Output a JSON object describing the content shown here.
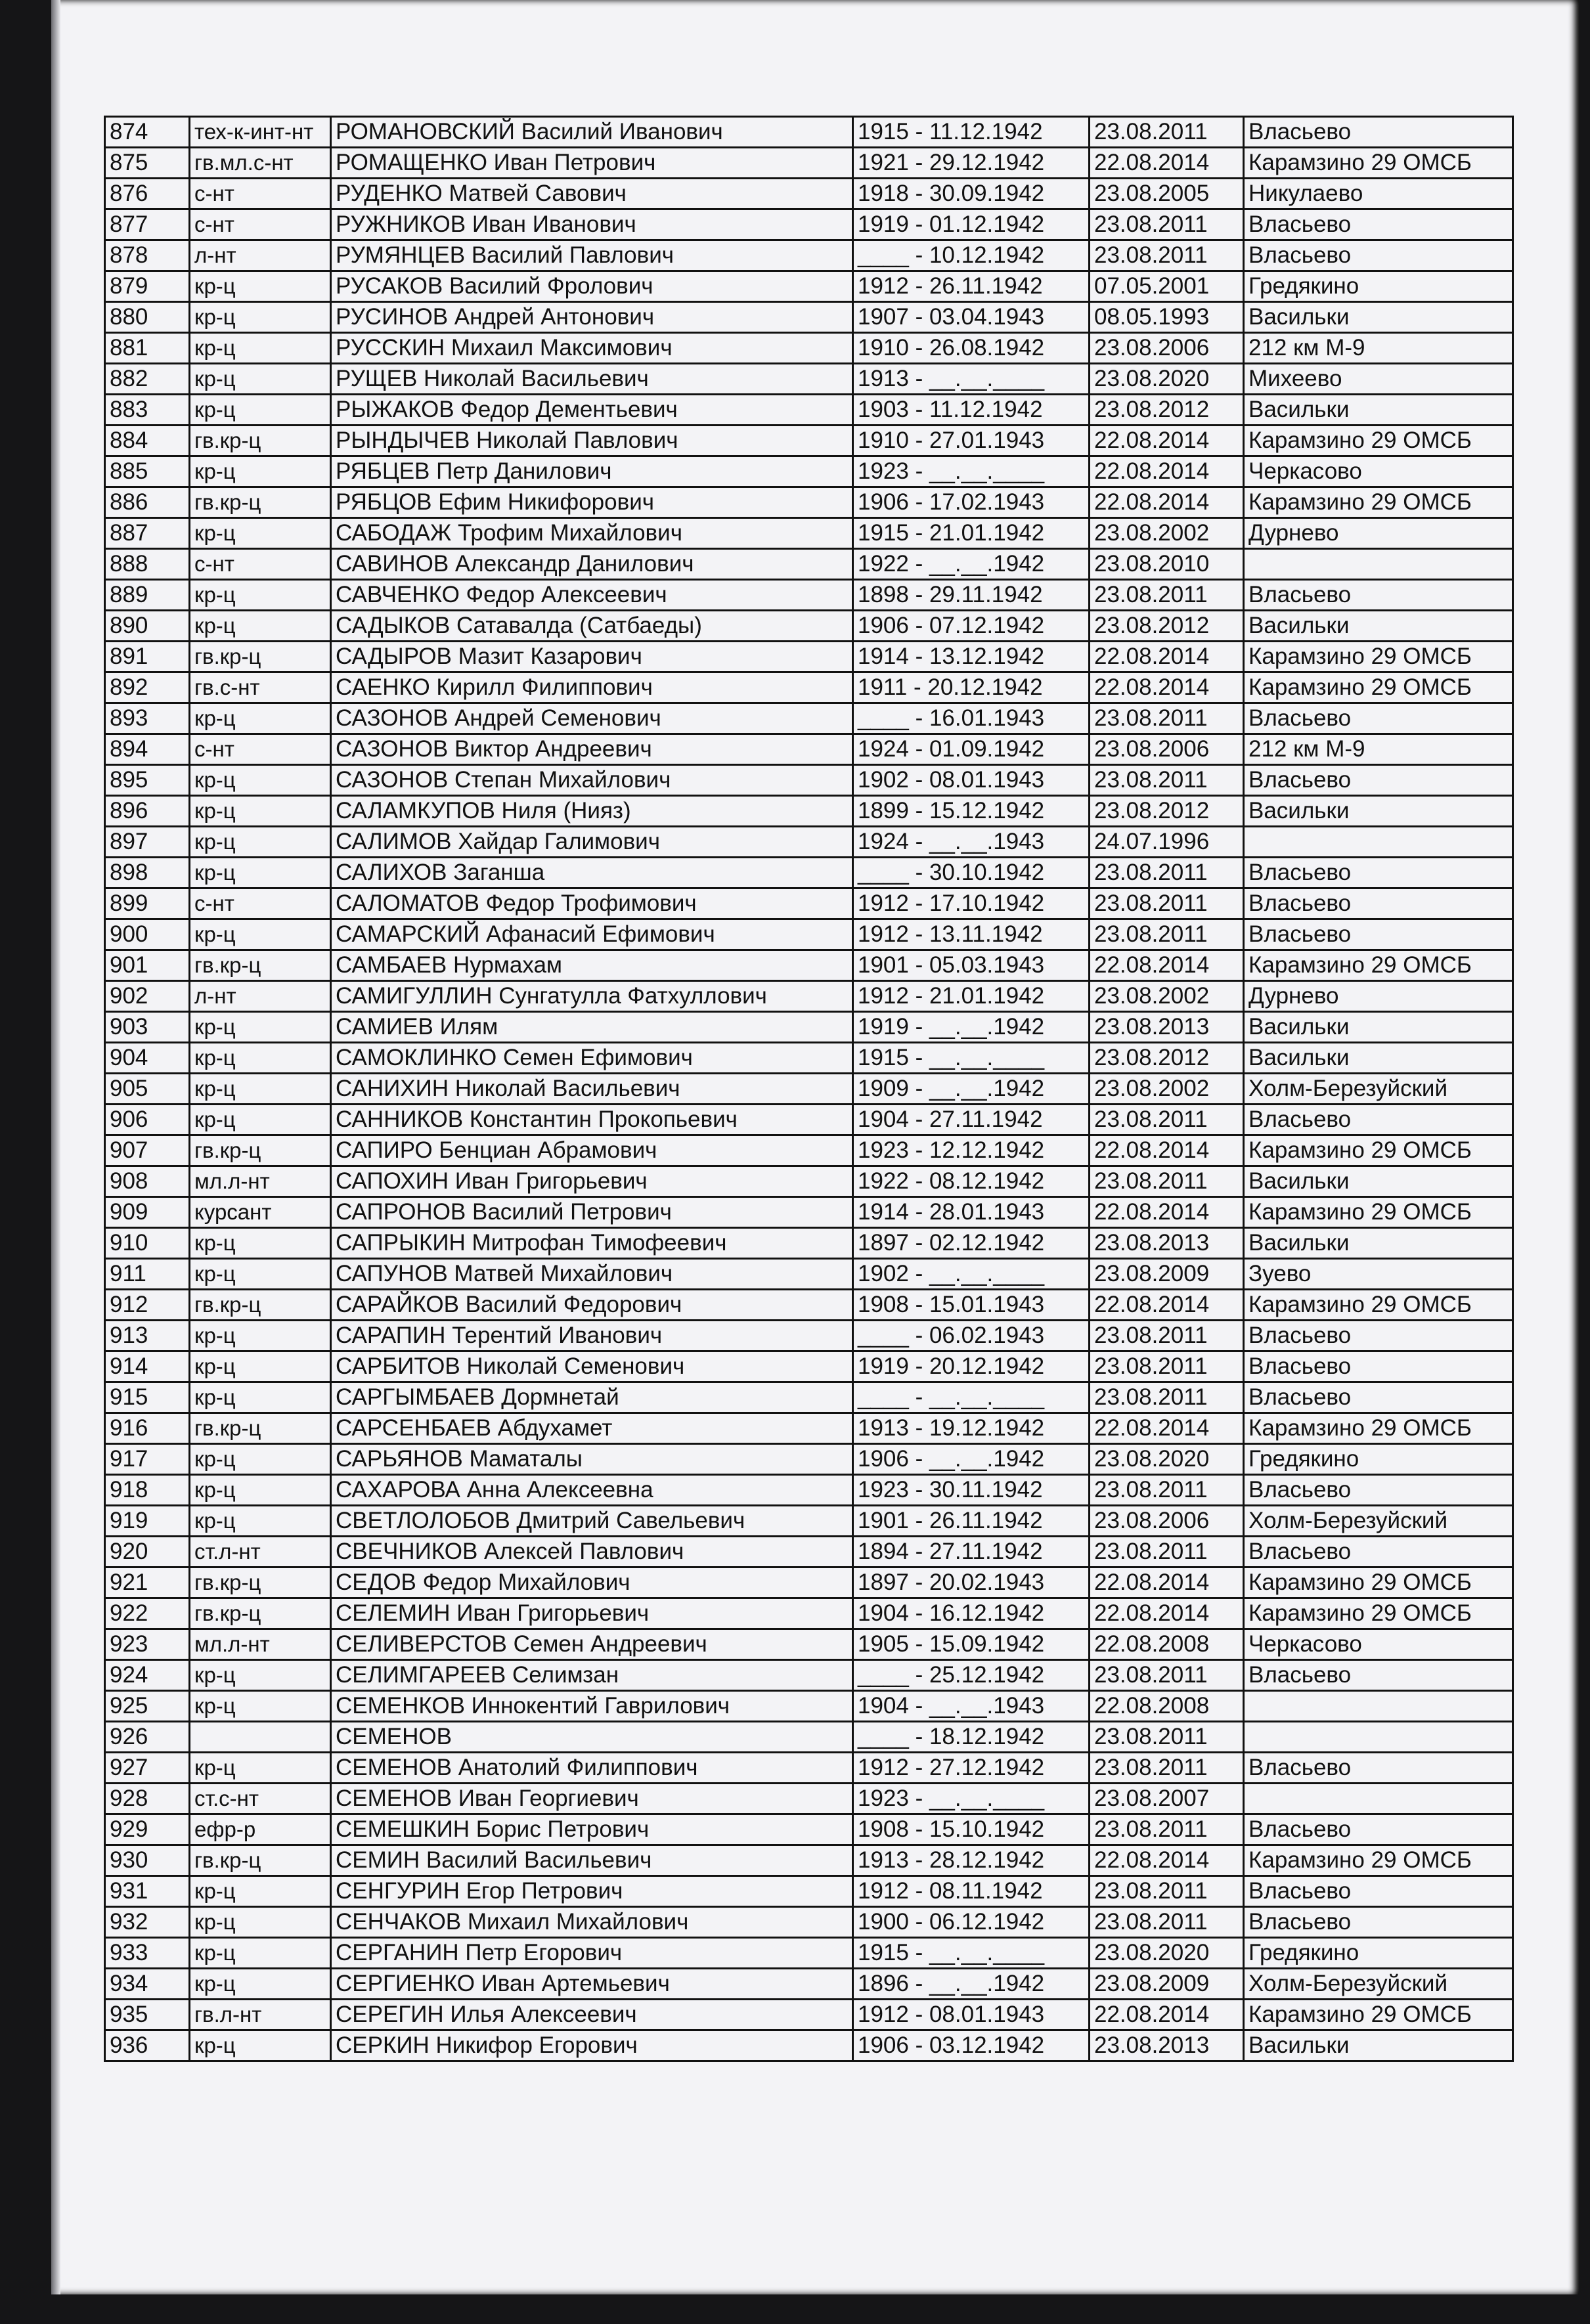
{
  "rows": [
    [
      "874",
      "тех-к-инт-нт",
      "РОМАНОВСКИЙ Василий Иванович",
      "1915 - 11.12.1942",
      "23.08.2011",
      "Власьево"
    ],
    [
      "875",
      "гв.мл.с-нт",
      "РОМАЩЕНКО Иван Петрович",
      "1921 - 29.12.1942",
      "22.08.2014",
      "Карамзино 29 ОМСБ"
    ],
    [
      "876",
      "с-нт",
      "РУДЕНКО  Матвей  Савович",
      "1918 - 30.09.1942",
      "23.08.2005",
      "Никулаево"
    ],
    [
      "877",
      "с-нт",
      "РУЖНИКОВ Иван Иванович",
      "1919 - 01.12.1942",
      "23.08.2011",
      "Власьево"
    ],
    [
      "878",
      "л-нт",
      "РУМЯНЦЕВ Василий Павлович",
      "____ - 10.12.1942",
      "23.08.2011",
      "Власьево"
    ],
    [
      "879",
      "кр-ц",
      "РУСАКОВ  Василий  Фролович",
      "1912 - 26.11.1942",
      "07.05.2001",
      "Гредякино"
    ],
    [
      "880",
      "кр-ц",
      "РУСИНОВ  Андрей  Антонович",
      "1907 - 03.04.1943",
      "08.05.1993",
      "Васильки"
    ],
    [
      "881",
      "кр-ц",
      "РУССКИН Михаил Максимович",
      "1910 - 26.08.1942",
      "23.08.2006",
      "212 км М-9"
    ],
    [
      "882",
      "кр-ц",
      "РУЩЕВ Николай Васильевич",
      "1913 - __.__.____",
      "23.08.2020",
      "Михеево"
    ],
    [
      "883",
      "кр-ц",
      "РЫЖАКОВ Федор Дементьевич",
      "1903 - 11.12.1942",
      "23.08.2012",
      "Васильки"
    ],
    [
      "884",
      "гв.кр-ц",
      "РЫНДЫЧЕВ Николай Павлович",
      "1910 - 27.01.1943",
      "22.08.2014",
      "Карамзино 29 ОМСБ"
    ],
    [
      "885",
      "кр-ц",
      "РЯБЦЕВ Петр Данилович",
      "1923 - __.__.____",
      "22.08.2014",
      "Черкасово"
    ],
    [
      "886",
      "гв.кр-ц",
      "РЯБЦОВ Ефим Никифорович",
      "1906 - 17.02.1943",
      "22.08.2014",
      "Карамзино 29 ОМСБ"
    ],
    [
      "887",
      "кр-ц",
      "САБОДАЖ Трофим Михайлович",
      "1915 - 21.01.1942",
      "23.08.2002",
      "Дурнево"
    ],
    [
      "888",
      "с-нт",
      "САВИНОВ Александр Данилович",
      "1922 - __.__.1942",
      "23.08.2010",
      ""
    ],
    [
      "889",
      "кр-ц",
      "САВЧЕНКО Федор Алексеевич",
      "1898 - 29.11.1942",
      "23.08.2011",
      "Власьево"
    ],
    [
      "890",
      "кр-ц",
      "САДЫКОВ Сатавалда (Сатбаеды)",
      "1906 - 07.12.1942",
      "23.08.2012",
      "Васильки"
    ],
    [
      "891",
      "гв.кр-ц",
      "САДЫРОВ Мазит Казарович",
      "1914 - 13.12.1942",
      "22.08.2014",
      "Карамзино 29 ОМСБ"
    ],
    [
      "892",
      "гв.с-нт",
      "САЕНКО Кирилл Филиппович",
      "1911 - 20.12.1942",
      "22.08.2014",
      "Карамзино 29 ОМСБ"
    ],
    [
      "893",
      "кр-ц",
      "САЗОНОВ Андрей Семенович",
      "____ - 16.01.1943",
      "23.08.2011",
      "Власьево"
    ],
    [
      "894",
      "с-нт",
      "САЗОНОВ Виктор Андреевич",
      "1924 - 01.09.1942",
      "23.08.2006",
      "212 км М-9"
    ],
    [
      "895",
      "кр-ц",
      "САЗОНОВ Степан Михайлович",
      "1902 - 08.01.1943",
      "23.08.2011",
      "Власьево"
    ],
    [
      "896",
      "кр-ц",
      "САЛАМКУПОВ Ниля (Нияз)",
      "1899 - 15.12.1942",
      "23.08.2012",
      "Васильки"
    ],
    [
      "897",
      "кр-ц",
      "САЛИМОВ Хайдар Галимович",
      "1924 - __.__.1943",
      "24.07.1996",
      ""
    ],
    [
      "898",
      "кр-ц",
      "САЛИХОВ Заганша",
      "____ - 30.10.1942",
      "23.08.2011",
      "Власьево"
    ],
    [
      "899",
      "с-нт",
      "САЛОМАТОВ Федор Трофимович",
      "1912 - 17.10.1942",
      "23.08.2011",
      "Власьево"
    ],
    [
      "900",
      "кр-ц",
      "САМАРСКИЙ Афанасий Ефимович",
      "1912 - 13.11.1942",
      "23.08.2011",
      "Власьево"
    ],
    [
      "901",
      "гв.кр-ц",
      "САМБАЕВ Нурмахам",
      "1901 - 05.03.1943",
      "22.08.2014",
      "Карамзино 29 ОМСБ"
    ],
    [
      "902",
      "л-нт",
      "САМИГУЛЛИН Сунгатулла Фатхуллович",
      "1912 - 21.01.1942",
      "23.08.2002",
      "Дурнево"
    ],
    [
      "903",
      "кр-ц",
      "САМИЕВ Илям",
      "1919 - __.__.1942",
      "23.08.2013",
      "Васильки"
    ],
    [
      "904",
      "кр-ц",
      "САМОКЛИНКО Семен Ефимович",
      "1915 - __.__.____",
      "23.08.2012",
      "Васильки"
    ],
    [
      "905",
      "кр-ц",
      "САНИХИН Николай Васильевич",
      "1909 - __.__.1942",
      "23.08.2002",
      "Холм-Березуйский"
    ],
    [
      "906",
      "кр-ц",
      "САННИКОВ Константин Прокопьевич",
      "1904 - 27.11.1942",
      "23.08.2011",
      "Власьево"
    ],
    [
      "907",
      "гв.кр-ц",
      "САПИРО Бенциан Абрамович",
      "1923 - 12.12.1942",
      "22.08.2014",
      "Карамзино 29 ОМСБ"
    ],
    [
      "908",
      "мл.л-нт",
      "САПОХИН Иван Григорьевич",
      "1922 - 08.12.1942",
      "23.08.2011",
      "Васильки"
    ],
    [
      "909",
      "курсант",
      "САПРОНОВ Василий Петрович",
      "1914 - 28.01.1943",
      "22.08.2014",
      "Карамзино 29 ОМСБ"
    ],
    [
      "910",
      "кр-ц",
      "САПРЫКИН Митрофан Тимофеевич",
      "1897 - 02.12.1942",
      "23.08.2013",
      "Васильки"
    ],
    [
      "911",
      "кр-ц",
      "САПУНОВ Матвей Михайлович",
      "1902 - __.__.____",
      "23.08.2009",
      "Зуево"
    ],
    [
      "912",
      "гв.кр-ц",
      "САРАЙКОВ Василий Федорович",
      "1908 - 15.01.1943",
      "22.08.2014",
      "Карамзино 29 ОМСБ"
    ],
    [
      "913",
      "кр-ц",
      "САРАПИН Терентий  Иванович",
      "____ - 06.02.1943",
      "23.08.2011",
      "Власьево"
    ],
    [
      "914",
      "кр-ц",
      "САРБИТОВ Николай Семенович",
      "1919 - 20.12.1942",
      "23.08.2011",
      "Власьево"
    ],
    [
      "915",
      "кр-ц",
      "САРГЫМБАЕВ Дормнетай",
      "____ - __.__.____",
      "23.08.2011",
      "Власьево"
    ],
    [
      "916",
      "гв.кр-ц",
      "САРСЕНБАЕВ Абдухамет",
      "1913 - 19.12.1942",
      "22.08.2014",
      "Карамзино 29 ОМСБ"
    ],
    [
      "917",
      "кр-ц",
      "САРЬЯНОВ Маматалы",
      "1906 - __.__.1942",
      "23.08.2020",
      "Гредякино"
    ],
    [
      "918",
      "кр-ц",
      "САХАРОВА Анна Алексеевна",
      "1923 - 30.11.1942",
      "23.08.2011",
      "Власьево"
    ],
    [
      "919",
      "кр-ц",
      "СВЕТЛОЛОБОВ Дмитрий Савельевич",
      "1901 - 26.11.1942",
      "23.08.2006",
      "Холм-Березуйский"
    ],
    [
      "920",
      "ст.л-нт",
      "СВЕЧНИКОВ Алексей Павлович",
      "1894 - 27.11.1942",
      "23.08.2011",
      "Власьево"
    ],
    [
      "921",
      "гв.кр-ц",
      "СЕДОВ Федор Михайлович",
      "1897 - 20.02.1943",
      "22.08.2014",
      "Карамзино 29 ОМСБ"
    ],
    [
      "922",
      "гв.кр-ц",
      "СЕЛЕМИН Иван Григорьевич",
      "1904 - 16.12.1942",
      "22.08.2014",
      "Карамзино 29 ОМСБ"
    ],
    [
      "923",
      "мл.л-нт",
      "СЕЛИВЕРСТОВ  Семен Андреевич",
      "1905 - 15.09.1942",
      "22.08.2008",
      "Черкасово"
    ],
    [
      "924",
      "кр-ц",
      "СЕЛИМГАРЕЕВ Селимзан",
      "____ - 25.12.1942",
      "23.08.2011",
      "Власьево"
    ],
    [
      "925",
      "кр-ц",
      "СЕМЕНКОВ  Иннокентий Гаврилович",
      "1904 - __.__.1943",
      "22.08.2008",
      ""
    ],
    [
      "926",
      "",
      "СЕМЕНОВ",
      "____ - 18.12.1942",
      "23.08.2011",
      ""
    ],
    [
      "927",
      "кр-ц",
      "СЕМЕНОВ Анатолий Филиппович",
      "1912 - 27.12.1942",
      "23.08.2011",
      "Власьево"
    ],
    [
      "928",
      "ст.с-нт",
      "СЕМЕНОВ Иван Георгиевич",
      "1923 - __.__.____",
      "23.08.2007",
      ""
    ],
    [
      "929",
      "ефр-р",
      "СЕМЕШКИН Борис Петрович",
      "1908 - 15.10.1942",
      "23.08.2011",
      "Власьево"
    ],
    [
      "930",
      "гв.кр-ц",
      "СЕМИН Василий Васильевич",
      "1913 - 28.12.1942",
      "22.08.2014",
      "Карамзино 29 ОМСБ"
    ],
    [
      "931",
      "кр-ц",
      "СЕНГУРИН Егор Петрович",
      "1912 - 08.11.1942",
      "23.08.2011",
      "Власьево"
    ],
    [
      "932",
      "кр-ц",
      "СЕНЧАКОВ Михаил Михайлович",
      "1900 - 06.12.1942",
      "23.08.2011",
      "Власьево"
    ],
    [
      "933",
      "кр-ц",
      "СЕРГАНИН Петр Егорович",
      "1915 - __.__.____",
      "23.08.2020",
      "Гредякино"
    ],
    [
      "934",
      "кр-ц",
      "СЕРГИЕНКО  Иван  Артемьевич",
      "1896 - __.__.1942",
      "23.08.2009",
      "Холм-Березуйский"
    ],
    [
      "935",
      "гв.л-нт",
      "СЕРЕГИН Илья Алексеевич",
      "1912 - 08.01.1943",
      "22.08.2014",
      "Карамзино 29 ОМСБ"
    ],
    [
      "936",
      "кр-ц",
      "СЕРКИН Никифор Егорович",
      "1906 - 03.12.1942",
      "23.08.2013",
      "Васильки"
    ]
  ]
}
